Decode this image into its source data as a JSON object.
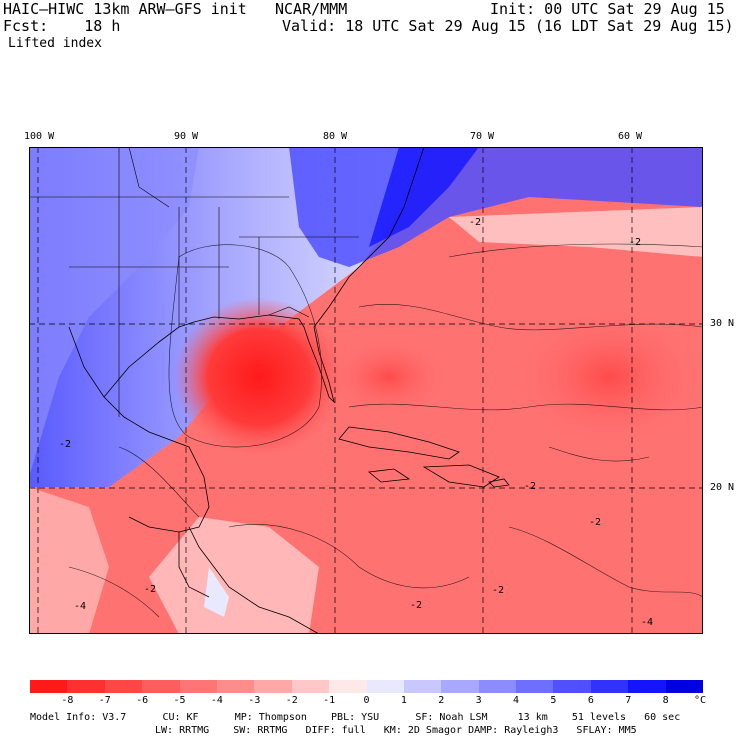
{
  "header": {
    "model": "HAIC–HIWC 13km ARW–GFS init",
    "org": "NCAR/MMM",
    "init": "Init: 00 UTC Sat 29 Aug 15",
    "fcst": "Fcst:    18 h",
    "valid": "Valid: 18 UTC Sat 29 Aug 15 (16 LDT Sat 29 Aug 15)",
    "field": "Lifted index"
  },
  "map": {
    "lon_labels": [
      "100 W",
      "90 W",
      "80 W",
      "70 W",
      "60 W"
    ],
    "lat_labels": [
      "30 N",
      "20 N"
    ],
    "contour_labels": [
      "-2",
      "-2",
      "-2",
      "-2",
      "-2",
      "-4",
      "-4",
      "-2",
      "-2",
      "-2"
    ]
  },
  "colorbar": {
    "ticks": [
      "-8",
      "-7",
      "-6",
      "-5",
      "-4",
      "-3",
      "-2",
      "-1",
      "0",
      "1",
      "2",
      "3",
      "4",
      "5",
      "6",
      "7",
      "8"
    ],
    "unit": "°C",
    "colors": [
      "#ff1a1a",
      "#ff3030",
      "#ff4747",
      "#ff5e5e",
      "#ff7575",
      "#ff8c8c",
      "#ffa8a8",
      "#ffc8c8",
      "#ffe8e8",
      "#e8e8ff",
      "#c8c8ff",
      "#a8a8ff",
      "#8c8cff",
      "#6e6eff",
      "#5050ff",
      "#3232ff",
      "#1414ff",
      "#0000e0"
    ]
  },
  "footer": {
    "line1": "Model Info: V3.7      CU: KF      MP: Thompson    PBL: YSU      SF: Noah LSM     13 km    51 levels   60 sec",
    "line2": "LW: RRTMG    SW: RRTMG   DIFF: full   KM: 2D Smagor DAMP: Rayleigh3   SFLAY: MM5"
  }
}
